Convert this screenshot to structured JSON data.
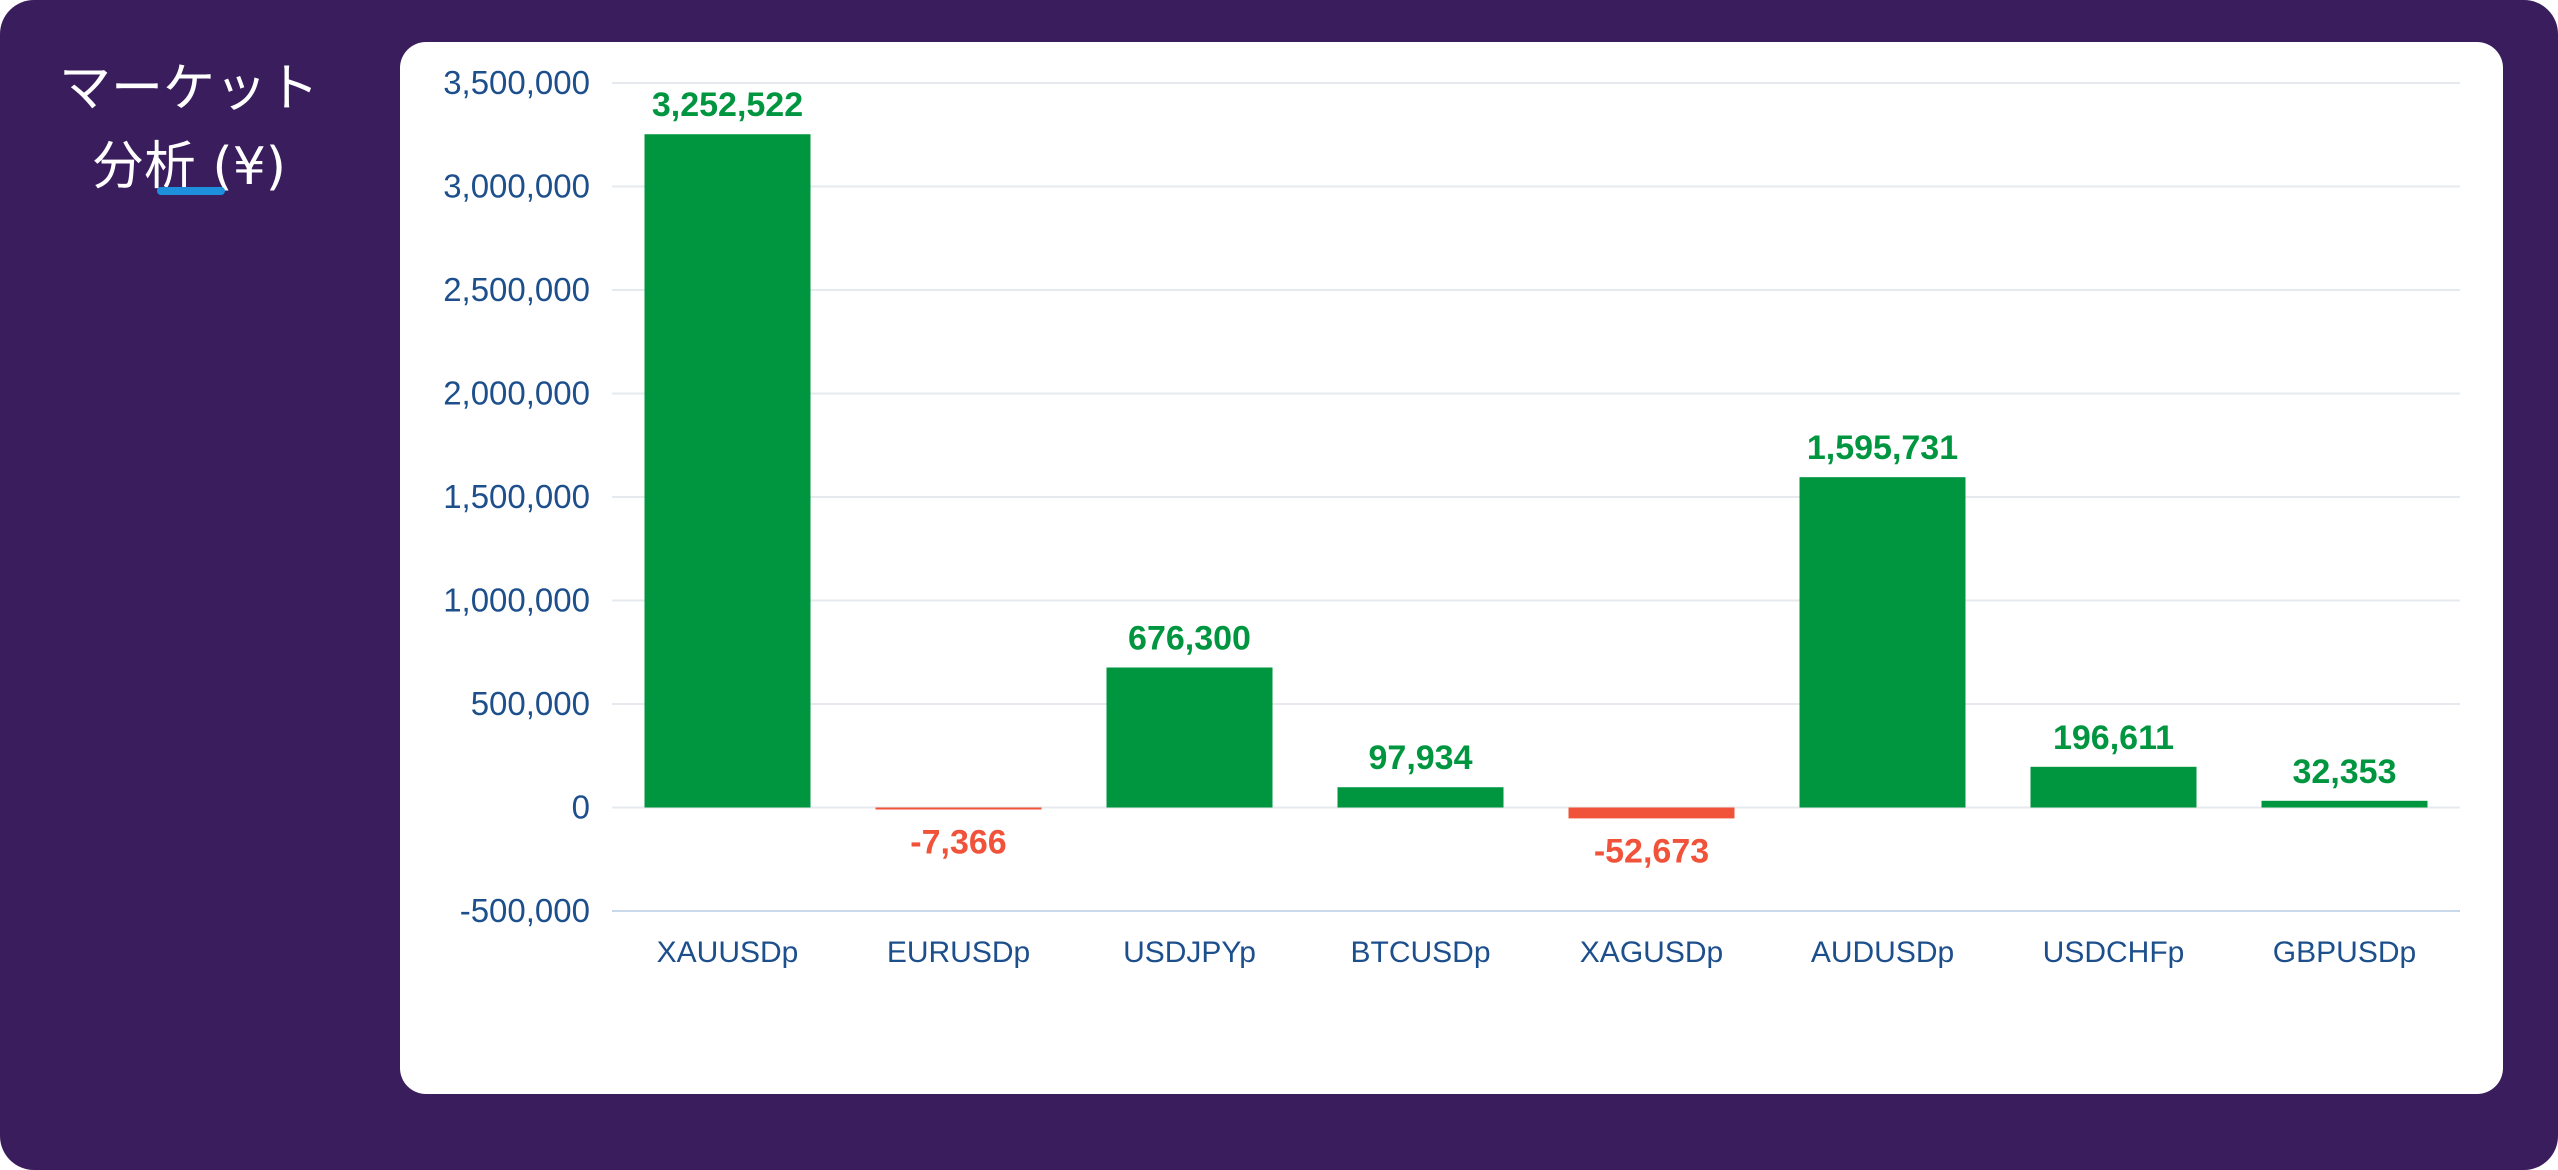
{
  "sidebar": {
    "title_line1": "マーケット",
    "title_line2": "分析 (¥)"
  },
  "colors": {
    "background": "#3a1d5c",
    "panel": "#ffffff",
    "accent": "#1e8fdd",
    "positive": "#009640",
    "negative": "#f0533a",
    "axis_text": "#1d4f8c",
    "grid": "#e6e9ee"
  },
  "chart_data": {
    "type": "bar",
    "title": "",
    "xlabel": "",
    "ylabel": "",
    "categories": [
      "XAUUSDp",
      "EURUSDp",
      "USDJPYp",
      "BTCUSDp",
      "XAGUSDp",
      "AUDUSDp",
      "USDCHFp",
      "GBPUSDp"
    ],
    "values": [
      3252522,
      -7366,
      676300,
      97934,
      -52673,
      1595731,
      196611,
      32353
    ],
    "value_labels": [
      "3,252,522",
      "-7,366",
      "676,300",
      "97,934",
      "-52,673",
      "1,595,731",
      "196,611",
      "32,353"
    ],
    "ylim": [
      -500000,
      3500000
    ],
    "yticks": [
      3500000,
      3000000,
      2500000,
      2000000,
      1500000,
      1000000,
      500000,
      0,
      -500000
    ],
    "ytick_labels": [
      "3,500,000",
      "3,000,000",
      "2,500,000",
      "2,000,000",
      "1,500,000",
      "1,000,000",
      "500,000",
      "0",
      "-500,000"
    ],
    "grid": true,
    "legend": "none"
  }
}
